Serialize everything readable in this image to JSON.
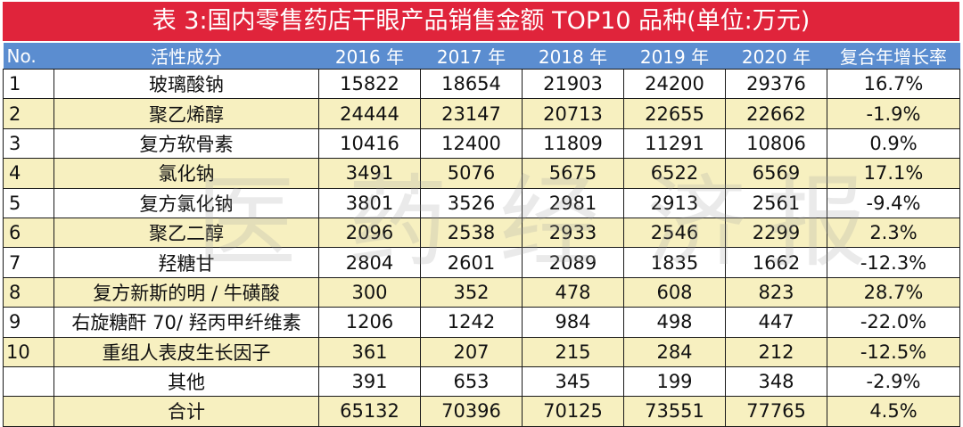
{
  "title": "表 3:国内零售药店干眼产品销售金额 TOP10 品种(单位:万元)",
  "watermark": [
    "医",
    "药",
    "经",
    "济",
    "报"
  ],
  "columns": [
    "No.",
    "活性成分",
    "2016 年",
    "2017 年",
    "2018 年",
    "2019 年",
    "2020 年",
    "复合年增长率"
  ],
  "rows": [
    [
      "1",
      "玻璃酸钠",
      "15822",
      "18654",
      "21903",
      "24200",
      "29376",
      "16.7%"
    ],
    [
      "2",
      "聚乙烯醇",
      "24444",
      "23147",
      "20713",
      "22655",
      "22662",
      "-1.9%"
    ],
    [
      "3",
      "复方软骨素",
      "10416",
      "12400",
      "11809",
      "11291",
      "10806",
      "0.9%"
    ],
    [
      "4",
      "氯化钠",
      "3491",
      "5076",
      "5675",
      "6522",
      "6569",
      "17.1%"
    ],
    [
      "5",
      "复方氯化钠",
      "3801",
      "3526",
      "2981",
      "2913",
      "2561",
      "-9.4%"
    ],
    [
      "6",
      "聚乙二醇",
      "2096",
      "2538",
      "2933",
      "2546",
      "2299",
      "2.3%"
    ],
    [
      "7",
      "羟糖甘",
      "2804",
      "2601",
      "2089",
      "1835",
      "1662",
      "-12.3%"
    ],
    [
      "8",
      "复方新斯的明 / 牛磺酸",
      "300",
      "352",
      "478",
      "608",
      "823",
      "28.7%"
    ],
    [
      "9",
      "右旋糖酐 70/ 羟丙甲纤维素",
      "1206",
      "1242",
      "984",
      "498",
      "447",
      "-22.0%"
    ],
    [
      "10",
      "重组人表皮生长因子",
      "361",
      "207",
      "215",
      "284",
      "212",
      "-12.5%"
    ],
    [
      "",
      "其他",
      "391",
      "653",
      "345",
      "199",
      "348",
      "-2.9%"
    ],
    [
      "",
      "合计",
      "65132",
      "70396",
      "70125",
      "73551",
      "77765",
      "4.5%"
    ]
  ],
  "colors": {
    "title_bg": "#e0243b",
    "header_bg": "#5b8dd0",
    "alt_row_bg": "#f7f0c0"
  }
}
